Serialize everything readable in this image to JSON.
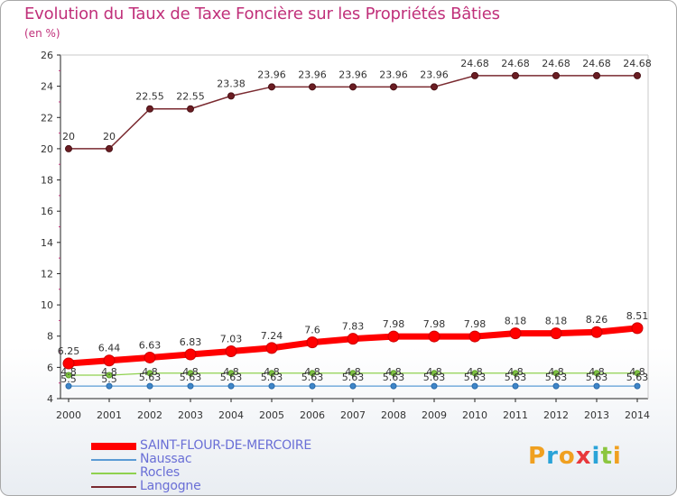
{
  "title": "Evolution du Taux de Taxe Foncière sur les Propriétés Bâties",
  "unit_label": "(en %)",
  "logo_text": "Proxiti",
  "chart_data": {
    "type": "line",
    "title": "Evolution du Taux de Taxe Foncière sur les Propriétés Bâties",
    "ylabel": "(en %)",
    "xlabel": "",
    "x": [
      "2000",
      "2001",
      "2002",
      "2003",
      "2004",
      "2005",
      "2006",
      "2007",
      "2008",
      "2009",
      "2010",
      "2011",
      "2012",
      "2013",
      "2014"
    ],
    "ylim": [
      4,
      26
    ],
    "yticks": [
      4,
      6,
      8,
      10,
      12,
      14,
      16,
      18,
      20,
      22,
      24,
      26
    ],
    "grid": false,
    "legend_position": "bottom-left",
    "series": [
      {
        "name": "SAINT-FLOUR-DE-MERCOIRE",
        "color": "#ff0000",
        "values": [
          6.25,
          6.44,
          6.63,
          6.83,
          7.03,
          7.24,
          7.6,
          7.83,
          7.98,
          7.98,
          7.98,
          8.18,
          8.18,
          8.26,
          8.51
        ],
        "labels": [
          "6.25",
          "6.44",
          "6.63",
          "6.83",
          "7.03",
          "7.24",
          "7.6",
          "7.83",
          "7.98",
          "7.98",
          "7.98",
          "8.18",
          "8.18",
          "8.26",
          "8.51"
        ]
      },
      {
        "name": "Naussac",
        "color": "#5b9bd5",
        "values": [
          4.8,
          4.8,
          4.8,
          4.8,
          4.8,
          4.8,
          4.8,
          4.8,
          4.8,
          4.8,
          4.8,
          4.8,
          4.8,
          4.8,
          4.8
        ],
        "labels": [
          "4.8",
          "4.8",
          "4.8",
          "4.8",
          "4.8",
          "4.8",
          "4.8",
          "4.8",
          "4.8",
          "4.8",
          "4.8",
          "4.8",
          "4.8",
          "4.8",
          "4.8"
        ]
      },
      {
        "name": "Rocles",
        "color": "#8fd14f",
        "values": [
          5.5,
          5.5,
          5.63,
          5.63,
          5.63,
          5.63,
          5.63,
          5.63,
          5.63,
          5.63,
          5.63,
          5.63,
          5.63,
          5.63,
          5.63
        ],
        "labels": [
          "5.5",
          "5.5",
          "5.63",
          "5.63",
          "5.63",
          "5.63",
          "5.63",
          "5.63",
          "5.63",
          "5.63",
          "5.63",
          "5.63",
          "5.63",
          "5.63",
          "5.63"
        ]
      },
      {
        "name": "Langogne",
        "color": "#7a2a30",
        "values": [
          20,
          20,
          22.55,
          22.55,
          23.38,
          23.96,
          23.96,
          23.96,
          23.96,
          23.96,
          24.68,
          24.68,
          24.68,
          24.68,
          24.68
        ],
        "labels": [
          "20",
          "20",
          "22.55",
          "22.55",
          "23.38",
          "23.96",
          "23.96",
          "23.96",
          "23.96",
          "23.96",
          "24.68",
          "24.68",
          "24.68",
          "24.68",
          "24.68"
        ]
      }
    ]
  }
}
